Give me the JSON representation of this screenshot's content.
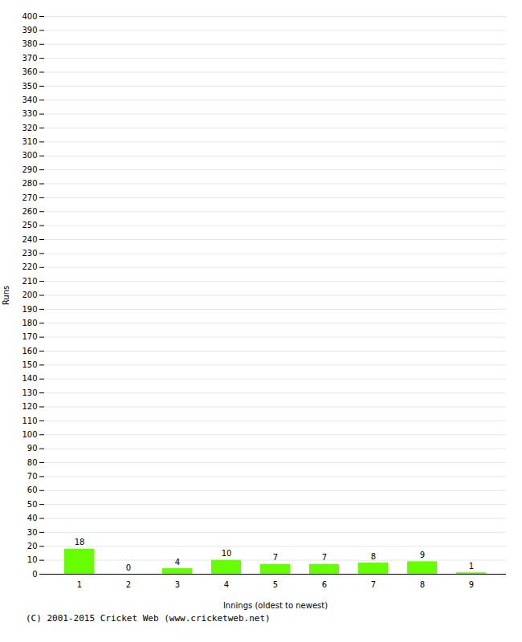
{
  "chart_data": {
    "type": "bar",
    "xlabel": "Innings (oldest to newest)",
    "ylabel": "Runs",
    "categories": [
      "1",
      "2",
      "3",
      "4",
      "5",
      "6",
      "7",
      "8",
      "9"
    ],
    "values": [
      18,
      0,
      4,
      10,
      7,
      7,
      8,
      9,
      1
    ],
    "color": "#66ff00",
    "ylim": [
      0,
      400
    ],
    "yticks": [
      0,
      10,
      20,
      30,
      40,
      50,
      60,
      70,
      80,
      90,
      100,
      110,
      120,
      130,
      140,
      150,
      160,
      170,
      180,
      190,
      200,
      210,
      220,
      230,
      240,
      250,
      260,
      270,
      280,
      290,
      300,
      310,
      320,
      330,
      340,
      350,
      360,
      370,
      380,
      390,
      400
    ],
    "grid": true,
    "data_labels": true,
    "annotations": [
      "(C) 2001-2015 Cricket Web (www.cricketweb.net)"
    ]
  }
}
